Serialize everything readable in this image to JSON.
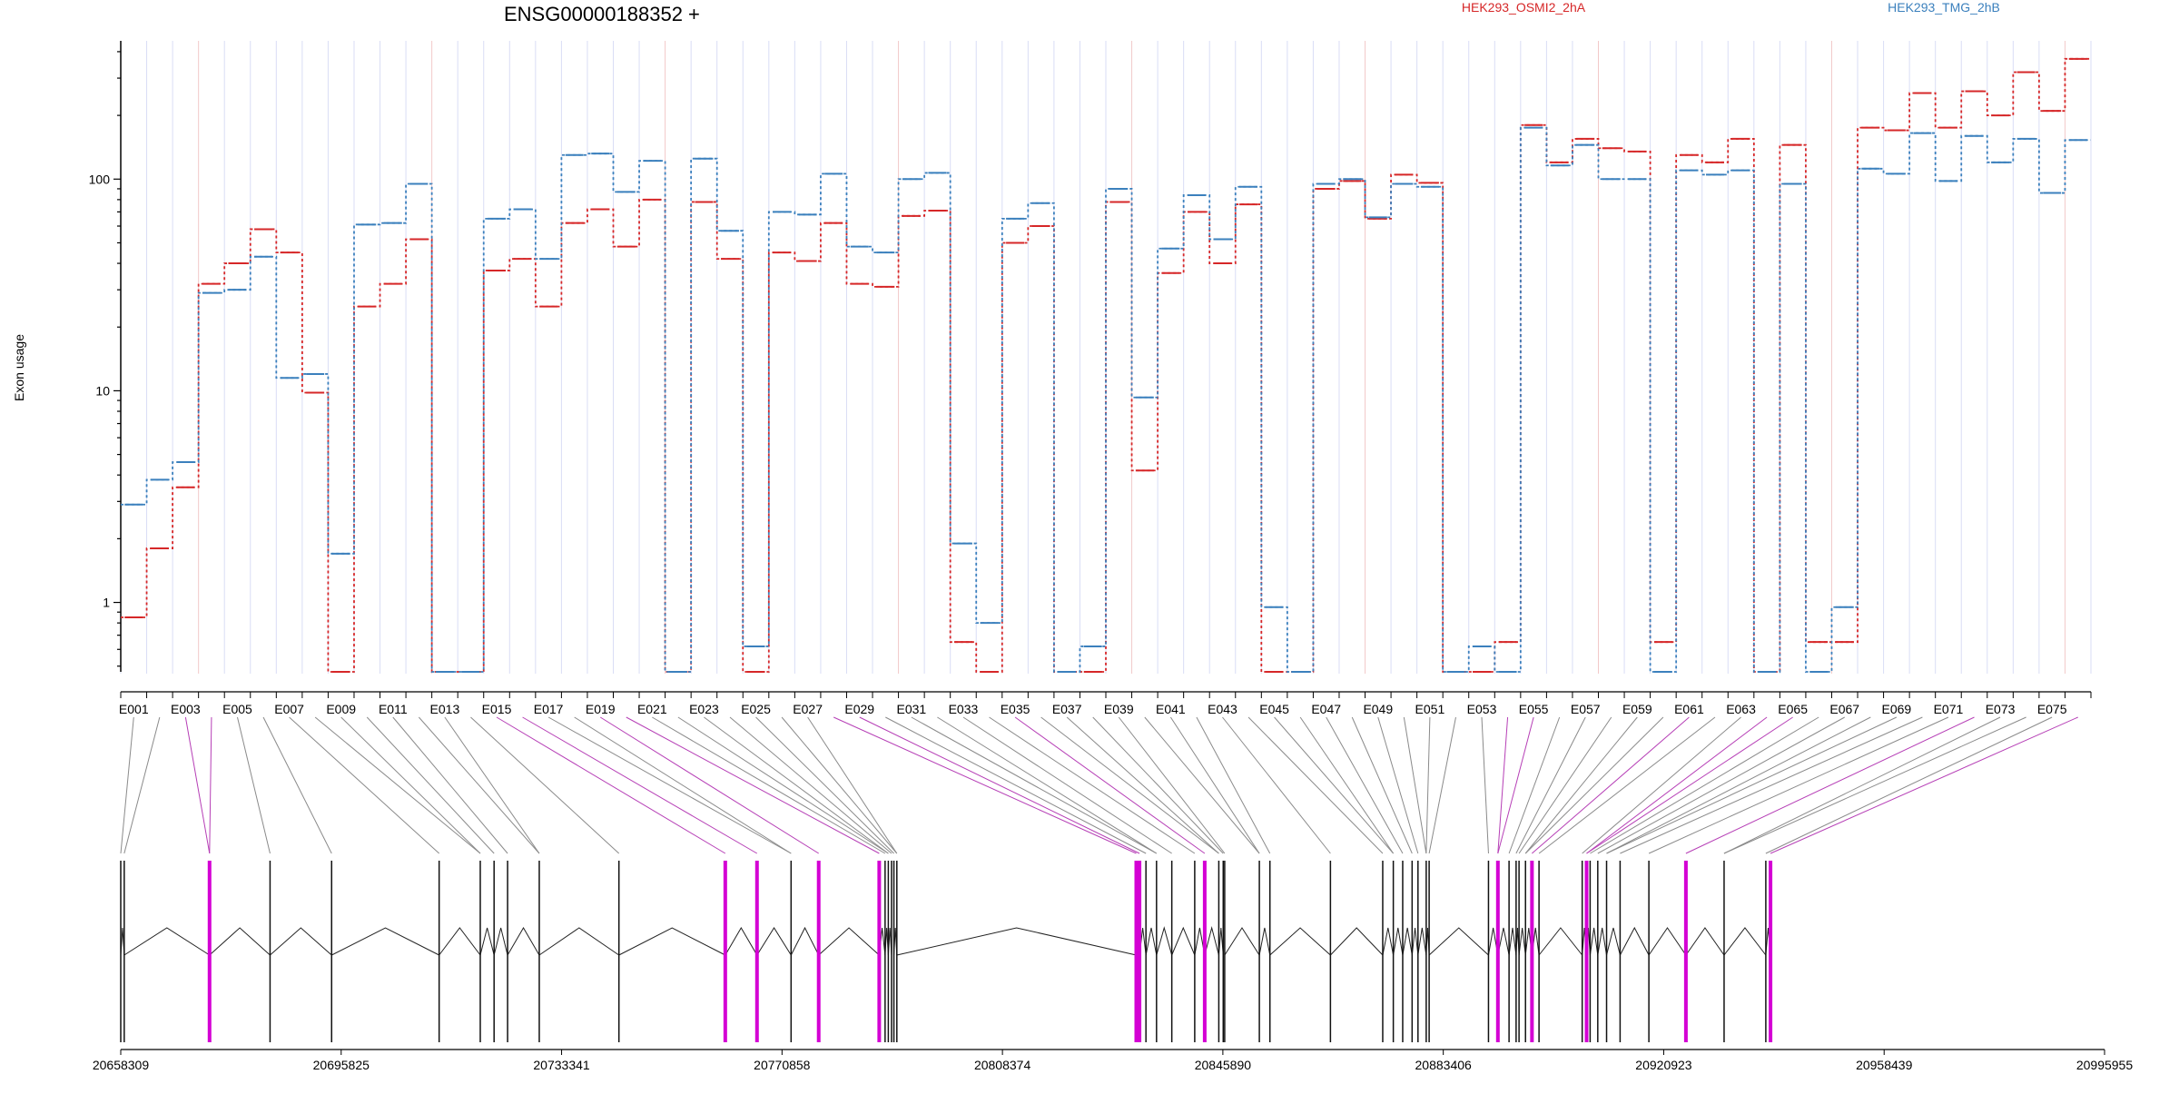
{
  "chart_data": {
    "type": "line",
    "title": "ENSG00000188352 +",
    "ylabel": "Exon usage",
    "yscale": "log",
    "ylim": [
      0.47,
      450
    ],
    "yticks": [
      1,
      10,
      100
    ],
    "ytick_labels": [
      "1",
      "10",
      "100"
    ],
    "categories": [
      "E001",
      "E002",
      "E003",
      "E004",
      "E005",
      "E006",
      "E007",
      "E008",
      "E009",
      "E010",
      "E011",
      "E012",
      "E013",
      "E014",
      "E015",
      "E016",
      "E017",
      "E018",
      "E019",
      "E020",
      "E021",
      "E022",
      "E023",
      "E024",
      "E025",
      "E026",
      "E027",
      "E028",
      "E029",
      "E030",
      "E031",
      "E032",
      "E033",
      "E034",
      "E035",
      "E036",
      "E037",
      "E038",
      "E039",
      "E040",
      "E041",
      "E042",
      "E043",
      "E044",
      "E045",
      "E046",
      "E047",
      "E048",
      "E049",
      "E050",
      "E051",
      "E052",
      "E053",
      "E054",
      "E055",
      "E056",
      "E057",
      "E058",
      "E059",
      "E060",
      "E061",
      "E062",
      "E063",
      "E064",
      "E065",
      "E066",
      "E067",
      "E068",
      "E069",
      "E070",
      "E071",
      "E072",
      "E073",
      "E074",
      "E075",
      "E076"
    ],
    "series": [
      {
        "name": "HEK293_OSMI2_2hA",
        "color": "#d62728",
        "values": [
          0.85,
          1.8,
          3.5,
          32,
          40,
          58,
          45,
          9.8,
          0.47,
          25,
          32,
          52,
          0.47,
          0.47,
          37,
          42,
          25,
          62,
          72,
          48,
          80,
          0.47,
          78,
          42,
          0.47,
          45,
          41,
          62,
          32,
          31,
          67,
          71,
          0.65,
          0.47,
          50,
          60,
          0.47,
          0.47,
          78,
          4.2,
          36,
          70,
          40,
          76,
          0.47,
          0.47,
          90,
          98,
          65,
          105,
          96,
          0.47,
          0.47,
          0.65,
          180,
          120,
          155,
          140,
          135,
          0.65,
          130,
          120,
          155,
          0.47,
          145,
          0.65,
          0.65,
          175,
          170,
          255,
          175,
          260,
          200,
          320,
          210,
          370
        ]
      },
      {
        "name": "HEK293_TMG_2hB",
        "color": "#3b80bd",
        "values": [
          2.9,
          3.8,
          4.6,
          29,
          30,
          43,
          11.5,
          12,
          1.7,
          61,
          62,
          95,
          0.47,
          0.47,
          65,
          72,
          42,
          130,
          132,
          87,
          122,
          0.47,
          125,
          57,
          0.62,
          70,
          68,
          106,
          48,
          45,
          100,
          107,
          1.9,
          0.8,
          65,
          77,
          0.47,
          0.62,
          90,
          9.3,
          47,
          84,
          52,
          92,
          0.95,
          0.47,
          95,
          100,
          66,
          95,
          92,
          0.47,
          0.62,
          0.47,
          175,
          116,
          145,
          100,
          100,
          0.47,
          110,
          105,
          110,
          0.47,
          95,
          0.47,
          0.95,
          112,
          106,
          165,
          98,
          160,
          120,
          155,
          86,
          153
        ]
      }
    ],
    "axis2": {
      "label_values": [
        "20658309",
        "20695825",
        "20733341",
        "20770858",
        "20808374",
        "20845890",
        "20883406",
        "20920923",
        "20958439",
        "20995955"
      ],
      "range": [
        20658309,
        20995955
      ]
    },
    "exons": {
      "starts": [
        20658309,
        20658900,
        20673420,
        20683720,
        20694200,
        20712500,
        20719500,
        20721850,
        20724150,
        20729540,
        20743100,
        20761200,
        20766600,
        20772400,
        20777100,
        20787400,
        20788400,
        20788950,
        20789500,
        20789900,
        20790400,
        20831150,
        20831700,
        20832800,
        20834600,
        20837200,
        20841100,
        20842800,
        20845200,
        20845950,
        20846200,
        20852100,
        20853900,
        20864200,
        20873100,
        20874900,
        20876500,
        20878100,
        20879100,
        20880500,
        20881000,
        20891100,
        20892700,
        20894600,
        20895800,
        20896300,
        20897400,
        20898500,
        20899700,
        20907050,
        20907800,
        20908400,
        20909700,
        20911200,
        20913500,
        20918400,
        20924700,
        20931200,
        20938300,
        20939100
      ],
      "highlighted": [
        false,
        false,
        true,
        false,
        false,
        false,
        false,
        false,
        false,
        false,
        false,
        true,
        true,
        false,
        true,
        true,
        false,
        false,
        false,
        false,
        false,
        true,
        true,
        false,
        false,
        false,
        false,
        true,
        false,
        false,
        false,
        false,
        false,
        false,
        false,
        false,
        false,
        false,
        false,
        false,
        false,
        false,
        true,
        false,
        false,
        false,
        false,
        true,
        false,
        false,
        true,
        false,
        false,
        false,
        false,
        false,
        true,
        false,
        false,
        true
      ]
    },
    "legend_position": "top",
    "grid": false
  }
}
